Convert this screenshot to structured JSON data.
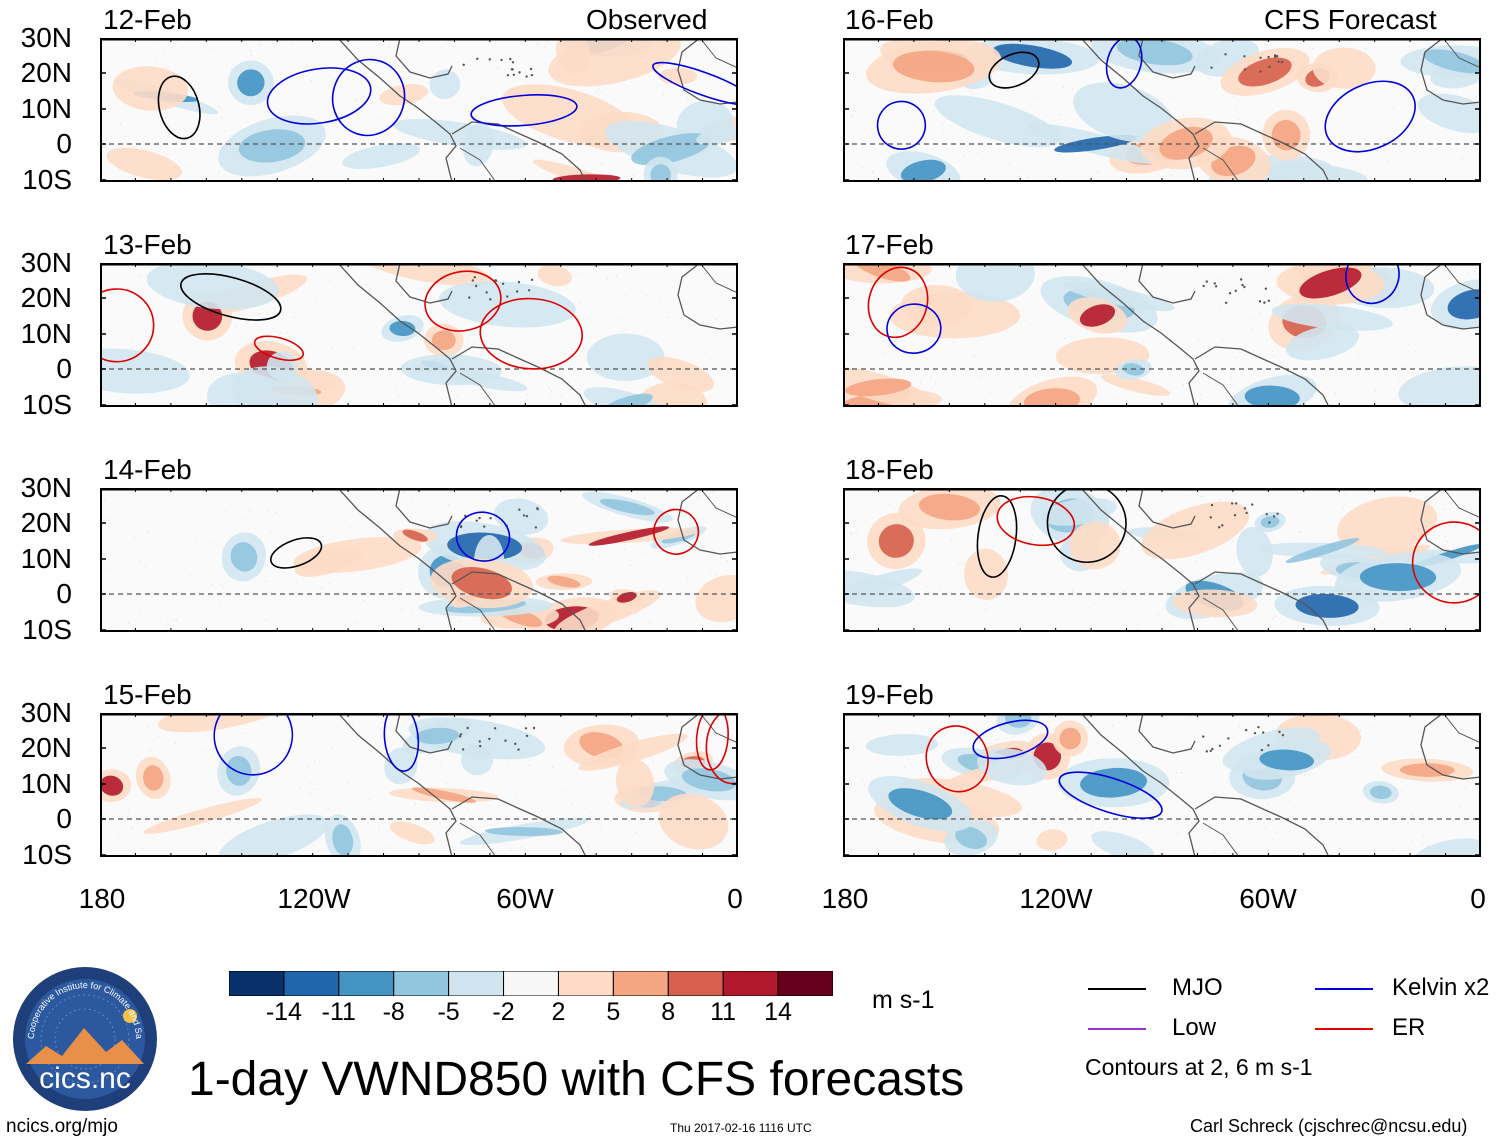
{
  "title": "1-day VWND850 with CFS forecasts",
  "columns": [
    {
      "tag": "Observed",
      "dates": [
        "12-Feb",
        "13-Feb",
        "14-Feb",
        "15-Feb"
      ]
    },
    {
      "tag": "CFS Forecast",
      "dates": [
        "16-Feb",
        "17-Feb",
        "18-Feb",
        "19-Feb"
      ]
    }
  ],
  "lat_labels": [
    "30N",
    "20N",
    "10N",
    "0",
    "10S"
  ],
  "lon_labels": [
    "180",
    "120W",
    "60W",
    "0"
  ],
  "colorbar": {
    "ticks": [
      "-14",
      "-11",
      "-8",
      "-5",
      "-2",
      "2",
      "5",
      "8",
      "11",
      "14"
    ],
    "units": "m s-1",
    "colors": [
      "#08306b",
      "#2166ac",
      "#4393c3",
      "#92c5de",
      "#d1e5f0",
      "#f7f7f7",
      "#fddbc7",
      "#f4a582",
      "#d6604d",
      "#b2182b",
      "#67001f"
    ]
  },
  "legend": {
    "items": [
      {
        "label": "MJO",
        "color": "#000000"
      },
      {
        "label": "Kelvin x2",
        "color": "#0000dd"
      },
      {
        "label": "Low",
        "color": "#9933cc"
      },
      {
        "label": "ER",
        "color": "#dd0000"
      }
    ],
    "note": "Contours at 2, 6 m s-1"
  },
  "logo_text": "cics.nc",
  "logo_ring_text": "Cooperative Institute for Climate and Satellites",
  "footer": {
    "url": "ncics.org/mjo",
    "timestamp": "Thu 2017-02-16 1116 UTC",
    "author": "Carl Schreck (cjschrec@ncsu.edu)"
  }
}
